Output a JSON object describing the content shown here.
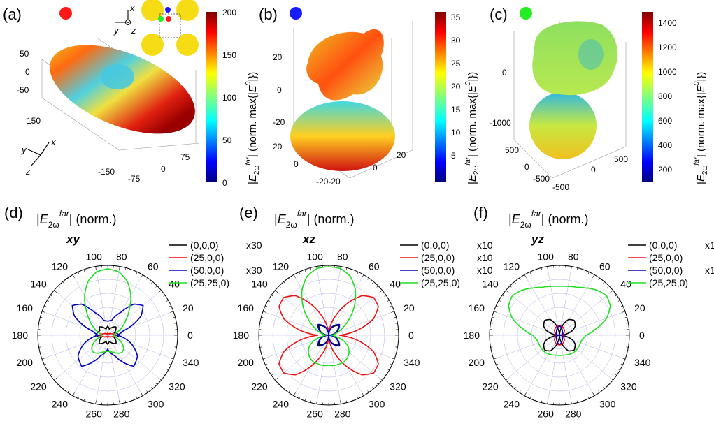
{
  "panels_3d": [
    {
      "id": "a",
      "label": "(a)",
      "marker_color": "#ff1a1a",
      "colorbar": {
        "min": 0,
        "max": 200,
        "ticks": [
          "200",
          "150",
          "100",
          "50",
          "0"
        ]
      },
      "axis_ticks": [
        "50",
        "0",
        "-50",
        "150",
        "-150",
        "-75",
        "0",
        "75"
      ],
      "inset_axes": {
        "x": "x",
        "y": "y",
        "z": "z"
      },
      "corner_axes": {
        "x": "x",
        "y": "y",
        "z": "z"
      }
    },
    {
      "id": "b",
      "label": "(b)",
      "marker_color": "#1a1aff",
      "colorbar": {
        "min": 0,
        "max": 37,
        "ticks": [
          "35",
          "30",
          "25",
          "20",
          "15",
          "10",
          "5"
        ]
      },
      "axis_ticks": [
        "20",
        "0",
        "-20",
        "20",
        "0",
        "-20-20",
        "0",
        "20"
      ]
    },
    {
      "id": "c",
      "label": "(c)",
      "marker_color": "#22ee22",
      "colorbar": {
        "min": 100,
        "max": 1500,
        "ticks": [
          "1400",
          "1200",
          "1000",
          "800",
          "600",
          "400",
          "200"
        ]
      },
      "axis_ticks": [
        "0",
        "-1000",
        "500",
        "0",
        "-500",
        "-500",
        "0",
        "500"
      ]
    }
  ],
  "colorbar_label_parts": {
    "pre": "|",
    "E": "E",
    "sub": "2ω",
    "sup": "far",
    "mid": "| (norm. max{|",
    "E0sup": "0",
    "post": "|})"
  },
  "polar_title_parts": {
    "pre": "|",
    "E": "E",
    "sub": "2ω",
    "sup": "far",
    "post": "| (norm.)"
  },
  "polar_angle_labels": [
    "0",
    "20",
    "40",
    "60",
    "80",
    "100",
    "120",
    "140",
    "160",
    "180",
    "200",
    "220",
    "240",
    "260",
    "280",
    "300",
    "320",
    "340"
  ],
  "chart_data": [
    {
      "type": "line",
      "panel": "(d)",
      "plane": "xy",
      "coordinate": "polar",
      "theta_unit": "deg",
      "series": [
        {
          "name": "(0,0,0)",
          "scale_note": "x30",
          "color": "#000000",
          "theta": [
            0,
            20,
            30,
            45,
            60,
            75,
            90,
            105,
            120,
            135,
            150,
            180,
            200,
            210,
            225,
            240,
            255,
            270,
            285,
            300,
            315,
            330,
            340
          ],
          "r": [
            0.17,
            0.1,
            0.13,
            0.17,
            0.13,
            0.09,
            0.13,
            0.09,
            0.13,
            0.17,
            0.13,
            0.17,
            0.1,
            0.13,
            0.17,
            0.13,
            0.09,
            0.13,
            0.09,
            0.13,
            0.17,
            0.13,
            0.1
          ]
        },
        {
          "name": "(25,0,0)",
          "scale_note": "",
          "color": "#ff0000",
          "theta": [
            0,
            20,
            45,
            70,
            90,
            110,
            135,
            160,
            180,
            200,
            225,
            250,
            270,
            290,
            315,
            340
          ],
          "r": [
            0.12,
            0.06,
            0.03,
            0.02,
            0.03,
            0.02,
            0.03,
            0.06,
            0.12,
            0.06,
            0.03,
            0.02,
            0.03,
            0.02,
            0.03,
            0.06
          ]
        },
        {
          "name": "(50,0,0)",
          "scale_note": "x30",
          "color": "#0000c0",
          "theta": [
            0,
            15,
            30,
            40,
            50,
            60,
            75,
            90,
            105,
            120,
            130,
            140,
            150,
            165,
            180,
            200,
            215,
            230,
            250,
            270,
            290,
            310,
            325,
            340
          ],
          "r": [
            0.13,
            0.22,
            0.55,
            0.66,
            0.58,
            0.38,
            0.22,
            0.2,
            0.22,
            0.38,
            0.58,
            0.66,
            0.55,
            0.22,
            0.13,
            0.36,
            0.52,
            0.58,
            0.32,
            0.2,
            0.32,
            0.58,
            0.52,
            0.36
          ]
        },
        {
          "name": "(25,25,0)",
          "scale_note": "",
          "color": "#22dd22",
          "theta": [
            0,
            10,
            20,
            30,
            40,
            50,
            60,
            70,
            80,
            90,
            100,
            110,
            120,
            130,
            140,
            150,
            160,
            170,
            180,
            190,
            200,
            210,
            220,
            230,
            240,
            250,
            260,
            270,
            280,
            290,
            300,
            310,
            320,
            330,
            340,
            350
          ],
          "r": [
            0.08,
            0.1,
            0.16,
            0.24,
            0.34,
            0.48,
            0.66,
            0.82,
            0.92,
            0.95,
            0.92,
            0.82,
            0.66,
            0.48,
            0.34,
            0.24,
            0.16,
            0.1,
            0.08,
            0.1,
            0.16,
            0.24,
            0.3,
            0.32,
            0.3,
            0.26,
            0.24,
            0.23,
            0.24,
            0.26,
            0.3,
            0.32,
            0.3,
            0.24,
            0.16,
            0.1
          ]
        }
      ]
    },
    {
      "type": "line",
      "panel": "(e)",
      "plane": "xz",
      "coordinate": "polar",
      "theta_unit": "deg",
      "series": [
        {
          "name": "(0,0,0)",
          "scale_note": "x10",
          "color": "#000000",
          "theta": [
            0,
            20,
            45,
            70,
            90,
            110,
            135,
            160,
            180,
            200,
            225,
            250,
            270,
            290,
            315,
            340
          ],
          "r": [
            0.0,
            0.11,
            0.2,
            0.11,
            0.0,
            0.11,
            0.2,
            0.11,
            0.0,
            0.11,
            0.2,
            0.11,
            0.0,
            0.11,
            0.2,
            0.11
          ]
        },
        {
          "name": "(25,0,0)",
          "scale_note": "x10",
          "color": "#ee1111",
          "theta": [
            0,
            10,
            20,
            30,
            40,
            50,
            60,
            70,
            80,
            90,
            100,
            110,
            120,
            130,
            140,
            150,
            160,
            170,
            180,
            190,
            200,
            210,
            220,
            230,
            240,
            250,
            260,
            270,
            280,
            290,
            300,
            310,
            320,
            330,
            340,
            350
          ],
          "r": [
            0.15,
            0.42,
            0.68,
            0.82,
            0.84,
            0.74,
            0.52,
            0.3,
            0.13,
            0.05,
            0.13,
            0.3,
            0.52,
            0.74,
            0.84,
            0.82,
            0.68,
            0.42,
            0.15,
            0.42,
            0.68,
            0.82,
            0.84,
            0.74,
            0.52,
            0.3,
            0.13,
            0.05,
            0.13,
            0.3,
            0.52,
            0.74,
            0.84,
            0.82,
            0.68,
            0.42
          ]
        },
        {
          "name": "(50,0,0)",
          "scale_note": "x10",
          "color": "#0000c0",
          "theta": [
            0,
            20,
            45,
            70,
            90,
            110,
            135,
            160,
            180,
            200,
            225,
            250,
            270,
            290,
            315,
            340
          ],
          "r": [
            0.0,
            0.12,
            0.22,
            0.12,
            0.0,
            0.12,
            0.22,
            0.12,
            0.0,
            0.12,
            0.22,
            0.12,
            0.0,
            0.12,
            0.22,
            0.12
          ]
        },
        {
          "name": "(25,25,0)",
          "scale_note": "",
          "color": "#22dd22",
          "theta": [
            0,
            10,
            20,
            30,
            40,
            50,
            60,
            70,
            80,
            90,
            100,
            110,
            120,
            130,
            140,
            150,
            160,
            170,
            180,
            190,
            200,
            210,
            220,
            230,
            240,
            250,
            260,
            270,
            280,
            290,
            300,
            310,
            320,
            330,
            340,
            350
          ],
          "r": [
            0.05,
            0.08,
            0.15,
            0.25,
            0.4,
            0.58,
            0.76,
            0.9,
            0.97,
            0.98,
            0.97,
            0.9,
            0.76,
            0.58,
            0.4,
            0.25,
            0.15,
            0.08,
            0.05,
            0.1,
            0.22,
            0.32,
            0.38,
            0.42,
            0.44,
            0.44,
            0.44,
            0.43,
            0.44,
            0.44,
            0.44,
            0.42,
            0.38,
            0.32,
            0.22,
            0.1
          ]
        }
      ]
    },
    {
      "type": "line",
      "panel": "(f)",
      "plane": "yz",
      "coordinate": "polar",
      "theta_unit": "deg",
      "series": [
        {
          "name": "(0,0,0)",
          "scale_note": "x10",
          "color": "#000000",
          "theta": [
            0,
            20,
            30,
            45,
            60,
            70,
            80,
            90,
            100,
            110,
            120,
            135,
            150,
            160,
            180,
            200,
            210,
            225,
            240,
            250,
            260,
            270,
            280,
            290,
            300,
            315,
            330,
            340
          ],
          "r": [
            0.0,
            0.2,
            0.26,
            0.3,
            0.26,
            0.17,
            0.07,
            0.0,
            0.07,
            0.17,
            0.26,
            0.3,
            0.26,
            0.2,
            0.0,
            0.2,
            0.26,
            0.3,
            0.26,
            0.17,
            0.07,
            0.0,
            0.07,
            0.17,
            0.26,
            0.3,
            0.26,
            0.2
          ]
        },
        {
          "name": "(25,0,0)",
          "scale_note": "",
          "color": "#ee1111",
          "theta": [
            0,
            20,
            45,
            70,
            90,
            110,
            135,
            160,
            180,
            200,
            225,
            250,
            270,
            290,
            315,
            340
          ],
          "r": [
            0.04,
            0.06,
            0.1,
            0.13,
            0.14,
            0.13,
            0.1,
            0.06,
            0.04,
            0.06,
            0.1,
            0.13,
            0.14,
            0.13,
            0.1,
            0.06
          ]
        },
        {
          "name": "(50,0,0)",
          "scale_note": "x10",
          "color": "#0000c0",
          "theta": [
            0,
            20,
            45,
            60,
            70,
            80,
            90,
            100,
            110,
            120,
            135,
            160,
            180,
            200,
            225,
            240,
            250,
            260,
            270,
            280,
            290,
            300,
            315,
            340
          ],
          "r": [
            0.0,
            0.05,
            0.06,
            0.08,
            0.1,
            0.12,
            0.13,
            0.12,
            0.1,
            0.08,
            0.06,
            0.05,
            0.0,
            0.05,
            0.06,
            0.08,
            0.1,
            0.12,
            0.13,
            0.12,
            0.1,
            0.08,
            0.06,
            0.05
          ]
        },
        {
          "name": "(25,25,0)",
          "scale_note": "",
          "color": "#22dd22",
          "theta": [
            0,
            10,
            20,
            30,
            40,
            50,
            60,
            70,
            80,
            90,
            100,
            110,
            120,
            130,
            140,
            150,
            160,
            170,
            180,
            190,
            200,
            210,
            220,
            230,
            240,
            250,
            260,
            270,
            280,
            290,
            300,
            310,
            320,
            330,
            340,
            350
          ],
          "r": [
            0.38,
            0.53,
            0.72,
            0.84,
            0.88,
            0.84,
            0.78,
            0.73,
            0.71,
            0.7,
            0.71,
            0.73,
            0.78,
            0.84,
            0.88,
            0.84,
            0.72,
            0.53,
            0.38,
            0.33,
            0.32,
            0.32,
            0.32,
            0.32,
            0.31,
            0.3,
            0.29,
            0.29,
            0.29,
            0.3,
            0.31,
            0.32,
            0.32,
            0.32,
            0.32,
            0.33
          ]
        }
      ]
    }
  ]
}
